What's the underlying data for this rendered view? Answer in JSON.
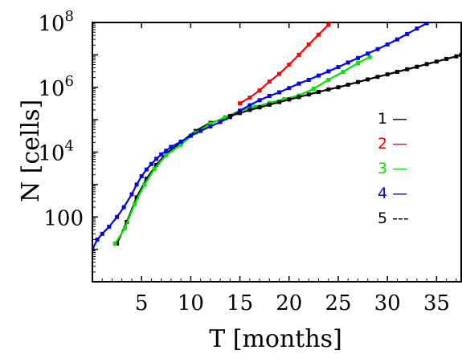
{
  "chart_data": {
    "type": "line",
    "title": "",
    "xlabel": "T [months]",
    "ylabel": "N [cells]",
    "xlim": [
      0,
      37.5
    ],
    "ylim": [
      1,
      100000000
    ],
    "yscale": "log",
    "x_ticks": [
      "5",
      "10",
      "15",
      "20",
      "25",
      "30",
      "35"
    ],
    "y_ticks": [
      {
        "value": 100,
        "label": "100",
        "sup": ""
      },
      {
        "value": 10000,
        "label": "10",
        "sup": "4"
      },
      {
        "value": 1000000,
        "label": "10",
        "sup": "6"
      },
      {
        "value": 100000000,
        "label": "10",
        "sup": "8"
      }
    ],
    "legend_position": "right",
    "series": [
      {
        "name": "1",
        "legend_marker": "—",
        "color": "#000000",
        "points": [
          [
            2.5,
            15
          ],
          [
            3.5,
            70
          ],
          [
            4.5,
            400
          ],
          [
            5.5,
            1500
          ],
          [
            6.5,
            4000
          ],
          [
            7.5,
            9000
          ],
          [
            9,
            20000
          ],
          [
            10.5,
            45000
          ],
          [
            12,
            80000
          ],
          [
            13.5,
            110000
          ]
        ]
      },
      {
        "name": "2",
        "legend_marker": "—",
        "color": "#ff0000",
        "points": [
          [
            15,
            320000
          ],
          [
            16,
            480000
          ],
          [
            17,
            800000
          ],
          [
            18,
            1500000
          ],
          [
            19,
            2600000
          ],
          [
            20,
            5000000
          ],
          [
            21,
            10000000
          ],
          [
            22,
            21000000
          ],
          [
            23,
            42000000
          ],
          [
            24,
            85000000
          ],
          [
            24.5,
            120000000
          ]
        ]
      },
      {
        "name": "3",
        "legend_marker": "—",
        "color": "#00e600",
        "points": [
          [
            2.3,
            15
          ],
          [
            3.3,
            45
          ],
          [
            4.3,
            250
          ],
          [
            5.3,
            1000
          ],
          [
            6.3,
            3000
          ],
          [
            7.5,
            8000
          ],
          [
            9,
            17000
          ],
          [
            10.5,
            40000
          ],
          [
            12,
            75000
          ],
          [
            13.5,
            120000
          ],
          [
            15,
            190000
          ],
          [
            16.5,
            250000
          ],
          [
            18,
            330000
          ],
          [
            19.5,
            430000
          ],
          [
            21,
            560000
          ],
          [
            22.5,
            900000
          ],
          [
            24,
            1700000
          ],
          [
            25.5,
            3000000
          ],
          [
            27,
            5600000
          ],
          [
            28.2,
            8500000
          ]
        ]
      },
      {
        "name": "4",
        "legend_marker": "—",
        "color": "#0000ff",
        "points": [
          [
            0,
            10
          ],
          [
            0.5,
            20
          ],
          [
            1,
            30
          ],
          [
            1.7,
            50
          ],
          [
            2.5,
            100
          ],
          [
            3.2,
            200
          ],
          [
            4,
            500
          ],
          [
            4.5,
            1000
          ],
          [
            5,
            1800
          ],
          [
            5.5,
            2900
          ],
          [
            6,
            4300
          ],
          [
            6.5,
            6200
          ],
          [
            7,
            8500
          ],
          [
            7.5,
            11000
          ],
          [
            8,
            14500
          ],
          [
            9,
            21000
          ],
          [
            10,
            32000
          ],
          [
            11,
            45000
          ],
          [
            12,
            62000
          ],
          [
            13,
            85000
          ],
          [
            14,
            120000
          ],
          [
            15,
            190000
          ],
          [
            16,
            280000
          ],
          [
            17,
            400000
          ],
          [
            18,
            540000
          ],
          [
            19,
            700000
          ],
          [
            20,
            950000
          ],
          [
            21,
            1300000
          ],
          [
            22,
            1700000
          ],
          [
            23,
            2300000
          ],
          [
            24,
            3100000
          ],
          [
            25,
            4200000
          ],
          [
            26,
            5800000
          ],
          [
            27,
            8000000
          ],
          [
            28,
            11000000
          ],
          [
            29,
            15000000
          ],
          [
            30,
            21000000
          ],
          [
            31,
            30000000
          ],
          [
            32,
            44000000
          ],
          [
            33,
            65000000
          ],
          [
            34,
            95000000
          ],
          [
            34.8,
            120000000
          ]
        ]
      },
      {
        "name": "5",
        "legend_marker": "---",
        "color": "#000000",
        "points": [
          [
            14,
            130000
          ],
          [
            15,
            160000
          ],
          [
            16,
            200000
          ],
          [
            17,
            240000
          ],
          [
            18,
            290000
          ],
          [
            19,
            350000
          ],
          [
            20,
            420000
          ],
          [
            21,
            500000
          ],
          [
            22,
            600000
          ],
          [
            23,
            720000
          ],
          [
            24,
            860000
          ],
          [
            25,
            1000000
          ],
          [
            26,
            1200000
          ],
          [
            27,
            1450000
          ],
          [
            28,
            1750000
          ],
          [
            29,
            2100000
          ],
          [
            30,
            2500000
          ],
          [
            31,
            3000000
          ],
          [
            32,
            3600000
          ],
          [
            33,
            4300000
          ],
          [
            34,
            5200000
          ],
          [
            35,
            6200000
          ],
          [
            36,
            7500000
          ],
          [
            37,
            9000000
          ],
          [
            37.5,
            10000000
          ]
        ]
      }
    ]
  }
}
